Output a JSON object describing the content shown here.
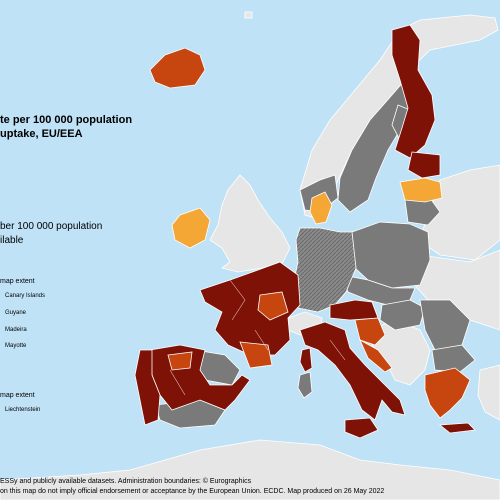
{
  "title": {
    "line1": "te per 100 000 population",
    "line2": "uptake, EU/EEA"
  },
  "legend": {
    "per100k": "ber 100 000 population",
    "not_available": "ilable"
  },
  "insets": {
    "heading": "map extent",
    "items": [
      "Canary Islands",
      "Guyane",
      "Madeira",
      "Mayotte"
    ]
  },
  "insets2": {
    "heading": "map extent",
    "items": [
      "Liechtenstein"
    ]
  },
  "footer": {
    "line1": "ESSy and publicly available datasets. Administration boundaries: © Eurographics",
    "line2": "on this map do not imply official endorsement or acceptance by the European Union. ECDC. Map produced on 26 May 2022"
  },
  "colors": {
    "sea": "#bfe2f7",
    "non_eu": "#e6e6e6",
    "dark_red": "#7f1206",
    "orange_red": "#c7460f",
    "orange": "#f4a735",
    "grey": "#7a7a7a",
    "hatched": "#8a8a8a",
    "border": "#ffffff"
  }
}
